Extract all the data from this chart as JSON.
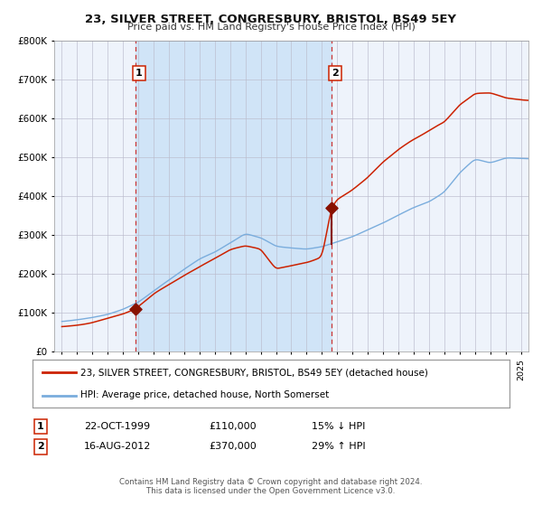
{
  "title": "23, SILVER STREET, CONGRESBURY, BRISTOL, BS49 5EY",
  "subtitle": "Price paid vs. HM Land Registry's House Price Index (HPI)",
  "hpi_label": "HPI: Average price, detached house, North Somerset",
  "price_label": "23, SILVER STREET, CONGRESBURY, BRISTOL, BS49 5EY (detached house)",
  "transaction1_date": "22-OCT-1999",
  "transaction1_price": 110000,
  "transaction1_pct": "15% ↓ HPI",
  "transaction2_date": "16-AUG-2012",
  "transaction2_price": 370000,
  "transaction2_pct": "29% ↑ HPI",
  "transaction1_year": 1999.8,
  "transaction2_year": 2012.62,
  "xlim_left": 1994.5,
  "xlim_right": 2025.5,
  "ylim_bottom": 0,
  "ylim_top": 800000,
  "yticks": [
    0,
    100000,
    200000,
    300000,
    400000,
    500000,
    600000,
    700000,
    800000
  ],
  "background_color": "#ffffff",
  "plot_bg_color": "#eef3fb",
  "shaded_region_color": "#d0e4f7",
  "grid_color": "#bbbbcc",
  "hpi_color": "#7aaddd",
  "price_color": "#cc2200",
  "marker_color": "#881100",
  "vline_color": "#cc3333",
  "footnote1": "Contains HM Land Registry data © Crown copyright and database right 2024.",
  "footnote2": "This data is licensed under the Open Government Licence v3.0."
}
